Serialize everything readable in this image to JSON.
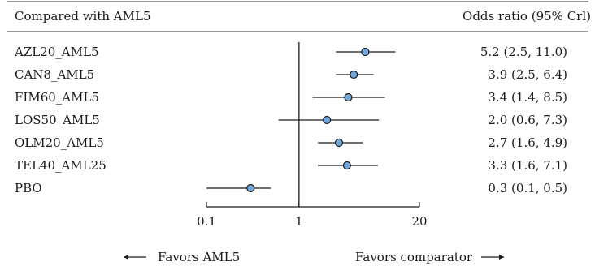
{
  "header": {
    "left": "Compared with AML5",
    "right": "Odds ratio (95% Crl)"
  },
  "footer": {
    "left": "Favors AML5",
    "right": "Favors comparator"
  },
  "colors": {
    "point_fill": "#6fa8dc",
    "ink": "#1a1a1a"
  },
  "chart_data": {
    "type": "forest",
    "x_scale": "log",
    "xlim": [
      0.1,
      20
    ],
    "x_ticks": [
      {
        "value": 0.1,
        "label": "0.1"
      },
      {
        "value": 1,
        "label": "1"
      },
      {
        "value": 20,
        "label": "20"
      }
    ],
    "reference_value": 1,
    "rows": [
      {
        "label": "AZL20_AML5",
        "or": 5.2,
        "lower": 2.5,
        "upper": 11.0,
        "text": "5.2 (2.5, 11.0)"
      },
      {
        "label": "CAN8_AML5",
        "or": 3.9,
        "lower": 2.5,
        "upper": 6.4,
        "text": "3.9 (2.5, 6.4)"
      },
      {
        "label": "FIM60_AML5",
        "or": 3.4,
        "lower": 1.4,
        "upper": 8.5,
        "text": "3.4 (1.4, 8.5)"
      },
      {
        "label": "LOS50_AML5",
        "or": 2.0,
        "lower": 0.6,
        "upper": 7.3,
        "text": "2.0 (0.6, 7.3)"
      },
      {
        "label": "OLM20_AML5",
        "or": 2.7,
        "lower": 1.6,
        "upper": 4.9,
        "text": "2.7 (1.6, 4.9)"
      },
      {
        "label": "TEL40_AML25",
        "or": 3.3,
        "lower": 1.6,
        "upper": 7.1,
        "text": "3.3 (1.6, 7.1)"
      },
      {
        "label": "PBO",
        "or": 0.3,
        "lower": 0.1,
        "upper": 0.5,
        "text": "0.3 (0.1, 0.5)"
      }
    ]
  }
}
